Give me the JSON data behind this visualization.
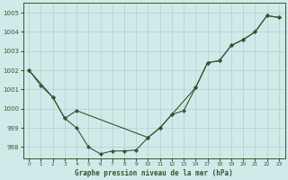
{
  "background_color": "#d0eaea",
  "grid_color": "#b0cccc",
  "line_color": "#2d5a2d",
  "title": "Graphe pression niveau de la mer (hPa)",
  "ylim": [
    997.4,
    1005.5
  ],
  "yticks": [
    998,
    999,
    1000,
    1001,
    1002,
    1003,
    1004,
    1005
  ],
  "xticks": [
    0,
    1,
    2,
    3,
    4,
    5,
    6,
    7,
    8,
    9,
    10,
    11,
    12,
    13,
    14,
    17,
    18,
    19,
    20,
    21,
    22,
    23
  ],
  "xlim": [
    -0.5,
    23.8
  ],
  "line1_x": [
    0,
    1,
    2,
    3,
    4,
    5,
    6,
    7,
    8,
    9,
    10,
    11,
    12,
    13,
    14,
    17,
    18,
    19,
    20,
    21,
    22,
    23
  ],
  "line1_y": [
    1002.0,
    1001.2,
    1000.6,
    999.5,
    999.0,
    998.0,
    997.65,
    997.8,
    997.8,
    997.85,
    998.5,
    999.0,
    999.7,
    999.9,
    1001.1,
    1002.4,
    1002.5,
    1003.3,
    1003.6,
    1004.0,
    1004.85,
    1004.75
  ],
  "line2_x": [
    0,
    2,
    3,
    4,
    10,
    11,
    12,
    14,
    17,
    18,
    19,
    20,
    21,
    22,
    23
  ],
  "line2_y": [
    1002.0,
    1000.6,
    999.5,
    999.9,
    998.5,
    999.0,
    999.7,
    1001.1,
    1002.4,
    1002.5,
    1003.3,
    1003.6,
    1004.0,
    1004.85,
    1004.75
  ],
  "trend_x": [
    0,
    23
  ],
  "trend_y": [
    1002.0,
    1005.0
  ]
}
